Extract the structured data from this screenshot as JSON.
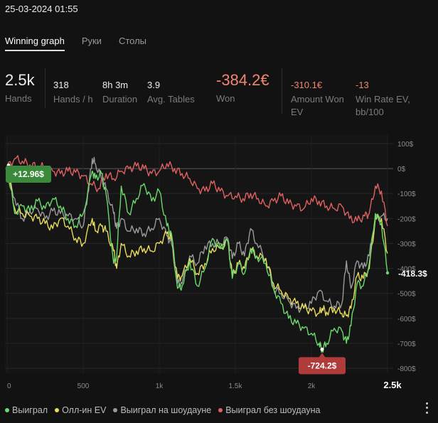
{
  "timestamp": "25-03-2024 01:55",
  "tabs": [
    {
      "label": "Winning graph",
      "active": true
    },
    {
      "label": "Руки",
      "active": false
    },
    {
      "label": "Столы",
      "active": false
    }
  ],
  "stats": {
    "hands": {
      "value": "2.5k",
      "label": "Hands"
    },
    "hands_per_hour": {
      "value": "318",
      "label": "Hands / h"
    },
    "duration": {
      "value": "8h 3m",
      "label": "Duration"
    },
    "avg_tables": {
      "value": "3.9",
      "label": "Avg. Tables"
    },
    "won": {
      "value": "-384.2€",
      "label": "Won"
    },
    "amount_won_ev": {
      "value": "-310.1€",
      "label_line1": "Amount Won",
      "label_line2": "EV"
    },
    "win_rate_ev": {
      "value": "-13",
      "label_line1": "Win Rate EV,",
      "label_line2": "bb/100"
    }
  },
  "colors": {
    "won": "#6bd96b",
    "allin_ev": "#e8dc5a",
    "showdown": "#9a9a9a",
    "non_showdown": "#e06060",
    "positive_badge": "#3b8a3b",
    "negative_badge": "#b03b3b"
  },
  "chart_data": {
    "type": "line",
    "xlim": [
      0,
      2500
    ],
    "ylim": [
      -820,
      120
    ],
    "x_ticks": [
      {
        "value": 0,
        "label": "0"
      },
      {
        "value": 500,
        "label": "500"
      },
      {
        "value": 1000,
        "label": "1k"
      },
      {
        "value": 1500,
        "label": "1.5k"
      },
      {
        "value": 2000,
        "label": "2k"
      },
      {
        "value": 2500,
        "label": "2.5k"
      }
    ],
    "y_ticks": [
      {
        "value": 100,
        "label": "100$"
      },
      {
        "value": 0,
        "label": "0$"
      },
      {
        "value": -100,
        "label": "-100$"
      },
      {
        "value": -200,
        "label": "-200$"
      },
      {
        "value": -300,
        "label": "-300$"
      },
      {
        "value": -400,
        "label": "-400$"
      },
      {
        "value": -500,
        "label": "-500$"
      },
      {
        "value": -600,
        "label": "-600$"
      },
      {
        "value": -700,
        "label": "-700$"
      },
      {
        "value": -800,
        "label": "-800$"
      }
    ],
    "end_label": "-418.3$",
    "max_marker": {
      "x": 10,
      "y": 12.96,
      "label": "+12.96$"
    },
    "min_marker": {
      "x": 2070,
      "y": -724.2,
      "label": "-724.2$"
    },
    "series": [
      {
        "name": "Выиграл",
        "color_key": "won",
        "x": [
          0,
          50,
          100,
          150,
          200,
          250,
          300,
          350,
          400,
          450,
          500,
          560,
          580,
          620,
          650,
          700,
          720,
          750,
          800,
          850,
          900,
          950,
          1000,
          1050,
          1080,
          1120,
          1150,
          1200,
          1250,
          1300,
          1350,
          1400,
          1450,
          1480,
          1520,
          1560,
          1600,
          1640,
          1700,
          1750,
          1800,
          1850,
          1900,
          1950,
          2000,
          2050,
          2070,
          2100,
          2150,
          2200,
          2230,
          2260,
          2300,
          2340,
          2380,
          2420,
          2460,
          2500
        ],
        "y": [
          5,
          -180,
          -150,
          -170,
          -130,
          -160,
          -120,
          -150,
          -200,
          -230,
          -180,
          -10,
          -40,
          -20,
          -100,
          -380,
          -350,
          -70,
          -180,
          -120,
          -60,
          -130,
          -90,
          -230,
          -260,
          -480,
          -470,
          -370,
          -470,
          -400,
          -280,
          -320,
          -290,
          -440,
          -380,
          -420,
          -320,
          -350,
          -380,
          -480,
          -540,
          -600,
          -620,
          -640,
          -660,
          -700,
          -724,
          -700,
          -640,
          -650,
          -700,
          -630,
          -460,
          -470,
          -380,
          -180,
          -220,
          -418
        ]
      },
      {
        "name": "Олл-ин EV",
        "color_key": "allin_ev",
        "x": [
          0,
          50,
          100,
          150,
          200,
          250,
          300,
          350,
          400,
          450,
          500,
          560,
          580,
          620,
          650,
          700,
          720,
          750,
          800,
          850,
          900,
          950,
          1000,
          1050,
          1080,
          1120,
          1150,
          1200,
          1250,
          1300,
          1350,
          1400,
          1450,
          1480,
          1520,
          1560,
          1600,
          1640,
          1700,
          1750,
          1800,
          1850,
          1900,
          1950,
          2000,
          2050,
          2070,
          2100,
          2150,
          2200,
          2230,
          2260,
          2300,
          2340,
          2380,
          2420,
          2460,
          2500
        ],
        "y": [
          0,
          -160,
          -180,
          -190,
          -200,
          -220,
          -240,
          -200,
          -230,
          -280,
          -300,
          -200,
          -250,
          -230,
          -250,
          -330,
          -400,
          -300,
          -350,
          -330,
          -320,
          -330,
          -300,
          -260,
          -280,
          -440,
          -430,
          -360,
          -420,
          -380,
          -320,
          -320,
          -290,
          -430,
          -380,
          -400,
          -320,
          -350,
          -360,
          -460,
          -490,
          -520,
          -540,
          -560,
          -570,
          -580,
          -560,
          -575,
          -560,
          -580,
          -590,
          -560,
          -430,
          -440,
          -400,
          -200,
          -200,
          -340
        ]
      },
      {
        "name": "Выиграл на шоудауне",
        "color_key": "showdown",
        "x": [
          0,
          50,
          100,
          150,
          200,
          250,
          300,
          350,
          400,
          450,
          500,
          530,
          560,
          580,
          620,
          650,
          700,
          720,
          750,
          800,
          850,
          900,
          950,
          1000,
          1050,
          1080,
          1120,
          1150,
          1200,
          1250,
          1300,
          1350,
          1400,
          1450,
          1480,
          1520,
          1560,
          1600,
          1640,
          1700,
          1750,
          1800,
          1850,
          1900,
          1950,
          2000,
          2050,
          2100,
          2150,
          2200,
          2230,
          2260,
          2300,
          2340,
          2380,
          2420,
          2460,
          2500
        ],
        "y": [
          0,
          -120,
          -200,
          -170,
          -160,
          -200,
          -170,
          -180,
          -190,
          -200,
          -230,
          -100,
          40,
          20,
          -40,
          -80,
          -180,
          -240,
          -200,
          -250,
          -240,
          -260,
          -240,
          -200,
          -270,
          -300,
          -460,
          -460,
          -350,
          -380,
          -310,
          -300,
          -300,
          -280,
          -360,
          -300,
          -350,
          -240,
          -300,
          -360,
          -480,
          -500,
          -530,
          -560,
          -560,
          -540,
          -490,
          -530,
          -550,
          -540,
          -370,
          -480,
          -370,
          -400,
          -350,
          -200,
          -190,
          -200
        ]
      },
      {
        "name": "Выиграл без шоудауна",
        "color_key": "non_showdown",
        "x": [
          0,
          50,
          100,
          150,
          200,
          250,
          300,
          350,
          400,
          450,
          500,
          550,
          600,
          650,
          700,
          750,
          800,
          850,
          900,
          950,
          1000,
          1050,
          1100,
          1150,
          1200,
          1250,
          1300,
          1350,
          1400,
          1450,
          1500,
          1550,
          1600,
          1650,
          1700,
          1750,
          1800,
          1850,
          1900,
          1950,
          2000,
          2050,
          2100,
          2150,
          2200,
          2250,
          2300,
          2350,
          2380,
          2420,
          2460,
          2500
        ],
        "y": [
          5,
          40,
          30,
          15,
          10,
          5,
          -10,
          -20,
          -10,
          -15,
          -30,
          -60,
          -80,
          -20,
          -40,
          -10,
          0,
          10,
          0,
          -20,
          -10,
          20,
          0,
          -20,
          -40,
          -80,
          -90,
          -60,
          -90,
          -110,
          -110,
          -120,
          -100,
          -120,
          -150,
          -130,
          -110,
          -140,
          -150,
          -160,
          -120,
          -130,
          -150,
          -160,
          -150,
          -200,
          -210,
          -190,
          -180,
          -70,
          -90,
          -230
        ]
      }
    ]
  }
}
